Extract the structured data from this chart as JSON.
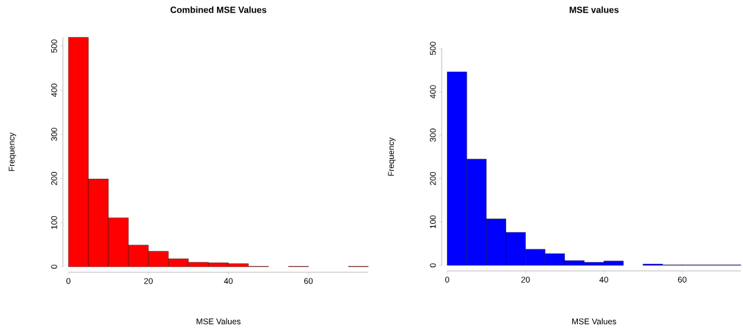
{
  "chart_data": [
    {
      "type": "histogram",
      "title": "Combined MSE Values",
      "xlabel": "MSE Values",
      "ylabel": "Frequency",
      "color": "#ff0000",
      "bins": [
        0,
        5,
        10,
        15,
        20,
        25,
        30,
        35,
        40,
        45,
        50,
        55,
        60,
        65,
        70,
        75
      ],
      "values": [
        520,
        199,
        111,
        49,
        35,
        18,
        10,
        9,
        7,
        1,
        0,
        1,
        0,
        0,
        1
      ],
      "xlim": [
        0,
        75
      ],
      "ylim": [
        0,
        520
      ],
      "xticks": [
        0,
        20,
        40,
        60
      ],
      "yticks": [
        0,
        100,
        200,
        300,
        400,
        500
      ]
    },
    {
      "type": "histogram",
      "title": "MSE values",
      "xlabel": "MSE Values",
      "ylabel": "Frequency",
      "color": "#0000ff",
      "bins": [
        0,
        5,
        10,
        15,
        20,
        25,
        30,
        35,
        40,
        45,
        50,
        55,
        60,
        65,
        70,
        75
      ],
      "values": [
        446,
        245,
        107,
        76,
        37,
        27,
        11,
        7,
        10,
        0,
        3,
        1,
        1,
        1,
        1
      ],
      "xlim": [
        0,
        75
      ],
      "ylim": [
        0,
        500
      ],
      "xticks": [
        0,
        20,
        40,
        60
      ],
      "yticks": [
        0,
        100,
        200,
        300,
        400,
        500
      ]
    }
  ]
}
